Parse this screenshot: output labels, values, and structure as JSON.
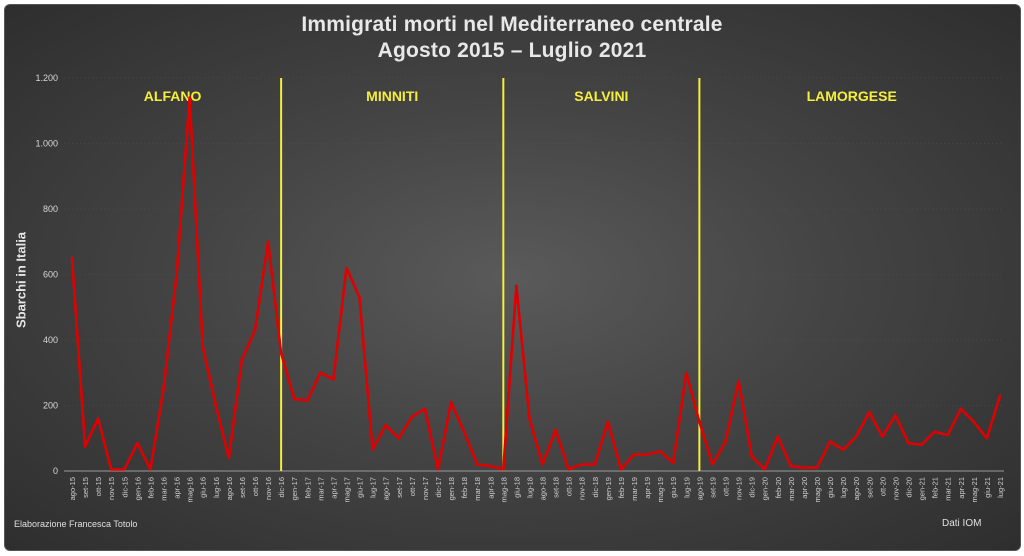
{
  "title_line1": "Immigrati morti nel Mediterraneo centrale",
  "title_line2": "Agosto 2015 – Luglio 2021",
  "credit": "Elaborazione Francesca Totolo",
  "source": "Dati IOM",
  "chart_data": {
    "type": "line",
    "title": "Immigrati morti nel Mediterraneo centrale — Agosto 2015 – Luglio 2021",
    "xlabel": "",
    "ylabel": "Sbarchi in Italia",
    "ylim": [
      0,
      1200
    ],
    "yticks": [
      0,
      200,
      400,
      600,
      800,
      1000,
      1200
    ],
    "ytick_labels": [
      "0",
      "200",
      "400",
      "600",
      "800",
      "1.000",
      "1.200"
    ],
    "grid": true,
    "line_color": "#e00000",
    "x": [
      "ago-15",
      "set-15",
      "ott-15",
      "nov-15",
      "dic-15",
      "gen-16",
      "feb-16",
      "mar-16",
      "apr-16",
      "mag-16",
      "giu-16",
      "lug-16",
      "ago-16",
      "set-16",
      "ott-16",
      "nov-16",
      "dic-16",
      "gen-17",
      "feb-17",
      "mar-17",
      "apr-17",
      "mag-17",
      "giu-17",
      "lug-17",
      "ago-17",
      "set-17",
      "ott-17",
      "nov-17",
      "dic-17",
      "gen-18",
      "feb-18",
      "mar-18",
      "apr-18",
      "mag-18",
      "giu-18",
      "lug-18",
      "ago-18",
      "set-18",
      "ott-18",
      "nov-18",
      "dic-18",
      "gen-19",
      "feb-19",
      "mar-19",
      "apr-19",
      "mag-19",
      "giu-19",
      "lug-19",
      "ago-19",
      "set-19",
      "ott-19",
      "nov-19",
      "dic-19",
      "gen-20",
      "feb-20",
      "mar-20",
      "apr-20",
      "mag-20",
      "giu-20",
      "lug-20",
      "ago-20",
      "set-20",
      "ott-20",
      "nov-20",
      "dic-20",
      "gen-21",
      "feb-21",
      "mar-21",
      "apr-21",
      "mag-21",
      "giu-21",
      "lug-21"
    ],
    "series": [
      {
        "values": [
          650,
          75,
          160,
          5,
          5,
          85,
          5,
          250,
          600,
          1140,
          380,
          200,
          40,
          340,
          430,
          700,
          360,
          220,
          215,
          300,
          280,
          620,
          530,
          65,
          140,
          100,
          165,
          190,
          5,
          210,
          120,
          20,
          15,
          5,
          565,
          160,
          20,
          125,
          5,
          20,
          20,
          150,
          5,
          50,
          50,
          60,
          25,
          300,
          150,
          20,
          90,
          275,
          45,
          5,
          105,
          15,
          10,
          10,
          90,
          65,
          105,
          180,
          105,
          170,
          85,
          80,
          120,
          110,
          190,
          150,
          100,
          230
        ]
      }
    ],
    "eras": [
      {
        "label": "ALFANO",
        "start": "ago-15"
      },
      {
        "label": "MINNITI",
        "start": "dic-16"
      },
      {
        "label": "SALVINI",
        "start": "mag-18"
      },
      {
        "label": "LAMORGESE",
        "start": "ago-19"
      }
    ],
    "era_color": "#f5ef3a"
  }
}
